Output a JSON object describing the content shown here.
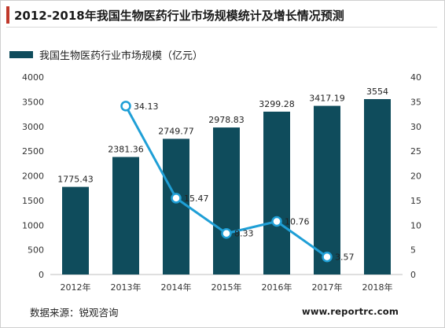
{
  "title": "2012-2018年我国生物医药行业市场规模统计及增长情况预测",
  "source": "数据来源：锐观咨询",
  "website": "www.reportrc.com",
  "colors": {
    "bar": "#0f4c5c",
    "line": "#1f9fd6",
    "accent": "#c0392b"
  },
  "chart_data": {
    "type": "bar",
    "categories": [
      "2012年",
      "2013年",
      "2014年",
      "2015年",
      "2016年",
      "2017年",
      "2018年"
    ],
    "series": [
      {
        "name": "我国生物医药行业市场规模（亿元）",
        "type": "bar",
        "axis": "left",
        "values": [
          1775.43,
          2381.36,
          2749.77,
          2978.83,
          3299.28,
          3417.19,
          3554
        ]
      },
      {
        "type": "line",
        "axis": "right",
        "values": [
          null,
          34.13,
          15.47,
          8.33,
          10.76,
          3.57,
          null
        ]
      }
    ],
    "y_left": {
      "min": 0,
      "max": 4000,
      "ticks": [
        0,
        500,
        1000,
        1500,
        2000,
        2500,
        3000,
        3500,
        4000
      ]
    },
    "y_right": {
      "min": 0,
      "max": 40,
      "ticks": [
        0,
        5,
        10,
        15,
        20,
        25,
        30,
        35,
        40
      ]
    },
    "legend_position": "top-left",
    "grid": false
  }
}
